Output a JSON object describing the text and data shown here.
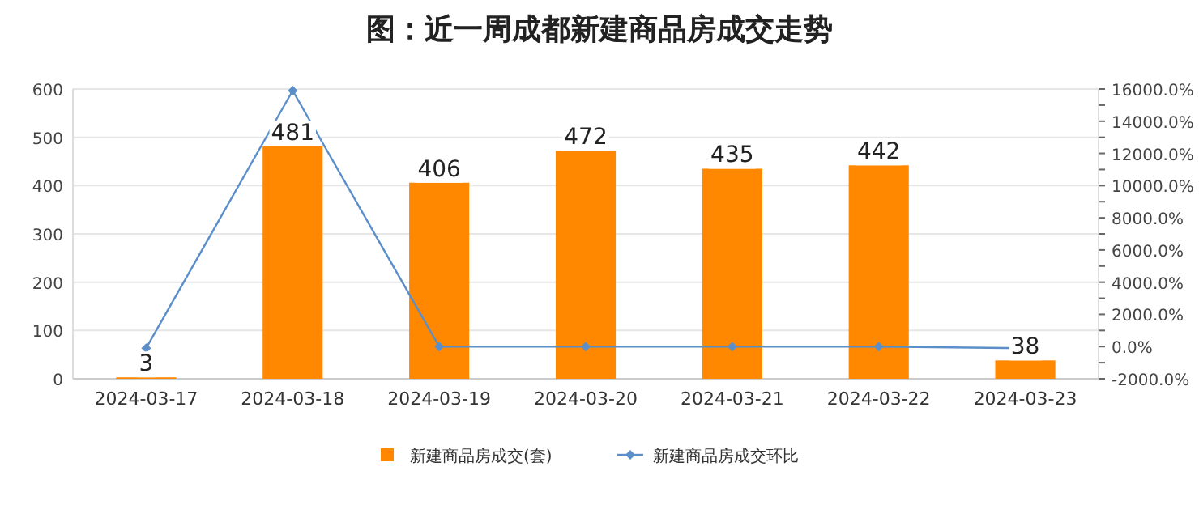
{
  "chart_data": {
    "type": "bar",
    "title": "图：近一周成都新建商品房成交走势",
    "categories": [
      "2024-03-17",
      "2024-03-18",
      "2024-03-19",
      "2024-03-20",
      "2024-03-21",
      "2024-03-22",
      "2024-03-23"
    ],
    "series": [
      {
        "name": "新建商品房成交(套)",
        "color": "#ff8800",
        "values": [
          3,
          481,
          406,
          472,
          435,
          442,
          38
        ],
        "value_labels": [
          "3",
          "481",
          "406",
          "472",
          "435",
          "442",
          "38"
        ]
      },
      {
        "name": "新建商品房成交环比",
        "type": "line",
        "axis": "y2",
        "color": "#5b8fc9",
        "marker": "diamond",
        "values": [
          -100,
          15900,
          0,
          0,
          0,
          0,
          -100
        ]
      }
    ],
    "ylim": [
      0,
      600
    ],
    "yticks": [
      0,
      100,
      200,
      300,
      400,
      500,
      600
    ],
    "y2lim": [
      -2000,
      16000
    ],
    "y2ticks": [
      {
        "value": -2000,
        "label": "-2000.0%"
      },
      {
        "value": -1000,
        "label": null
      },
      {
        "value": 0,
        "label": "0.0%"
      },
      {
        "value": 1000,
        "label": null
      },
      {
        "value": 2000,
        "label": "2000.0%"
      },
      {
        "value": 3000,
        "label": null
      },
      {
        "value": 4000,
        "label": "4000.0%"
      },
      {
        "value": 5000,
        "label": null
      },
      {
        "value": 6000,
        "label": "6000.0%"
      },
      {
        "value": 7000,
        "label": null
      },
      {
        "value": 8000,
        "label": "8000.0%"
      },
      {
        "value": 9000,
        "label": null
      },
      {
        "value": 10000,
        "label": "10000.0%"
      },
      {
        "value": 11000,
        "label": null
      },
      {
        "value": 12000,
        "label": "12000.0%"
      },
      {
        "value": 13000,
        "label": null
      },
      {
        "value": 14000,
        "label": "14000.0%"
      },
      {
        "value": 15000,
        "label": null
      },
      {
        "value": 16000,
        "label": "16000.0%"
      }
    ],
    "grid": "y",
    "legend": "bottom"
  }
}
